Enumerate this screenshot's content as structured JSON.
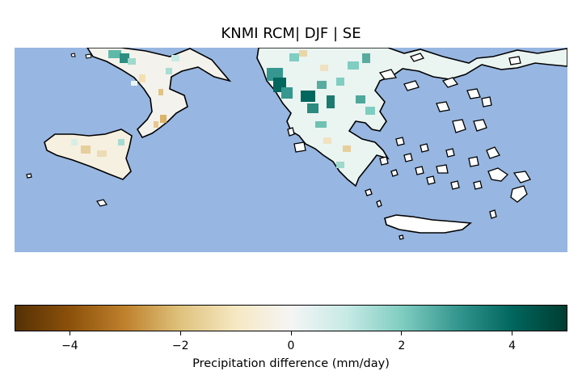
{
  "title": "KNMI RCM| DJF | SE",
  "colorbar": {
    "label": "Precipitation difference (mm/day)",
    "range": [
      -5,
      5
    ],
    "ticks": [
      {
        "value": -4,
        "label": "−4"
      },
      {
        "value": -2,
        "label": "−2"
      },
      {
        "value": 0,
        "label": "0"
      },
      {
        "value": 2,
        "label": "2"
      },
      {
        "value": 4,
        "label": "4"
      }
    ],
    "colormap": "BrBG",
    "stops": [
      "#543005",
      "#8c510a",
      "#bf812d",
      "#dfc27d",
      "#f6e8c3",
      "#f5f5f5",
      "#c7eae5",
      "#80cdc1",
      "#35978f",
      "#01665e",
      "#003c30"
    ]
  },
  "colors": {
    "sea": "#97b6e1",
    "coastline": "#000000",
    "no_data_land": "#ffffff"
  }
}
